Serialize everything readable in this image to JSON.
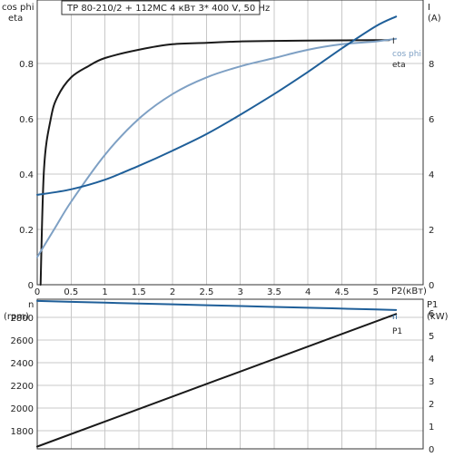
{
  "title": "TP 80-210/2 + 112MC    4 кВт   3* 400 V, 50 Hz",
  "colors": {
    "dark": "#1a1a1a",
    "light_blue": "#7ea0c4",
    "blue": "#1f5f99",
    "grid": "#c8c8c8"
  },
  "chart_data": [
    {
      "type": "line",
      "name": "upper",
      "xlim": [
        0,
        5.7
      ],
      "x_ticks": [
        0,
        0.5,
        1,
        1.5,
        2,
        2.5,
        3,
        3.5,
        4,
        4.5,
        5
      ],
      "x_tick_labels": [
        "0",
        "0.5",
        "1",
        "1.5",
        "2",
        "2.5",
        "3",
        "3.5",
        "4",
        "4.5",
        "5"
      ],
      "xlabel": "P2(кВт)",
      "left_axis": {
        "label_top": "cos phi",
        "label_bottom": "eta",
        "ylim": [
          0,
          1.03
        ],
        "ticks": [
          0,
          0.2,
          0.4,
          0.6,
          0.8
        ],
        "tick_labels": [
          "0",
          "0.2",
          "0.4",
          "0.6",
          "0.8"
        ]
      },
      "right_axis": {
        "label_top": "I",
        "label_bottom": "(A)",
        "ylim": [
          0,
          10.3
        ],
        "ticks": [
          0,
          2,
          4,
          6,
          8
        ],
        "tick_labels": [
          "0",
          "2",
          "4",
          "6",
          "8"
        ]
      },
      "grid": true,
      "series": [
        {
          "name": "eta",
          "axis": "left",
          "color": "#1a1a1a",
          "x": [
            0.05,
            0.1,
            0.2,
            0.3,
            0.5,
            0.75,
            1,
            1.5,
            2,
            2.5,
            3,
            3.5,
            4,
            4.5,
            5,
            5.2
          ],
          "y": [
            0.0,
            0.42,
            0.6,
            0.68,
            0.75,
            0.79,
            0.82,
            0.85,
            0.87,
            0.875,
            0.88,
            0.882,
            0.883,
            0.884,
            0.885,
            0.885
          ]
        },
        {
          "name": "cos phi",
          "axis": "left",
          "color": "#7ea0c4",
          "x": [
            0,
            0.25,
            0.5,
            1,
            1.5,
            2,
            2.5,
            3,
            3.5,
            4,
            4.5,
            5,
            5.3
          ],
          "y": [
            0.1,
            0.2,
            0.3,
            0.47,
            0.6,
            0.69,
            0.75,
            0.79,
            0.82,
            0.85,
            0.87,
            0.88,
            0.89
          ]
        },
        {
          "name": "I",
          "axis": "right",
          "color": "#1f5f99",
          "x": [
            0,
            0.5,
            1,
            1.5,
            2,
            2.5,
            3,
            3.5,
            4,
            4.5,
            5,
            5.3
          ],
          "y": [
            3.25,
            3.45,
            3.8,
            4.3,
            4.85,
            5.45,
            6.15,
            6.9,
            7.7,
            8.55,
            9.35,
            9.7
          ]
        }
      ]
    },
    {
      "type": "line",
      "name": "lower",
      "xlim": [
        0,
        5.7
      ],
      "x_ticks": [
        0,
        0.5,
        1,
        1.5,
        2,
        2.5,
        3,
        3.5,
        4,
        4.5,
        5
      ],
      "left_axis": {
        "label_top": "n",
        "label_bottom": "(rpm)",
        "ylim": [
          1640,
          2960
        ],
        "ticks": [
          1800,
          2000,
          2200,
          2400,
          2600,
          2800
        ],
        "tick_labels": [
          "1800",
          "2000",
          "2200",
          "2400",
          "2600",
          "2800"
        ]
      },
      "right_axis": {
        "label_top": "P1",
        "label_bottom": "(kW)",
        "ylim": [
          0,
          6.6
        ],
        "ticks": [
          0,
          1,
          2,
          3,
          4,
          5,
          6
        ],
        "tick_labels": [
          "0",
          "1",
          "2",
          "3",
          "4",
          "5",
          "6"
        ]
      },
      "grid": true,
      "series": [
        {
          "name": "n",
          "axis": "left",
          "color": "#1f5f99",
          "x": [
            0,
            1,
            2,
            3,
            4,
            5,
            5.3
          ],
          "y": [
            2945,
            2930,
            2915,
            2900,
            2885,
            2870,
            2865
          ]
        },
        {
          "name": "P1",
          "axis": "right",
          "color": "#1a1a1a",
          "x": [
            0,
            5.3
          ],
          "y": [
            0.1,
            5.95
          ]
        }
      ]
    }
  ]
}
